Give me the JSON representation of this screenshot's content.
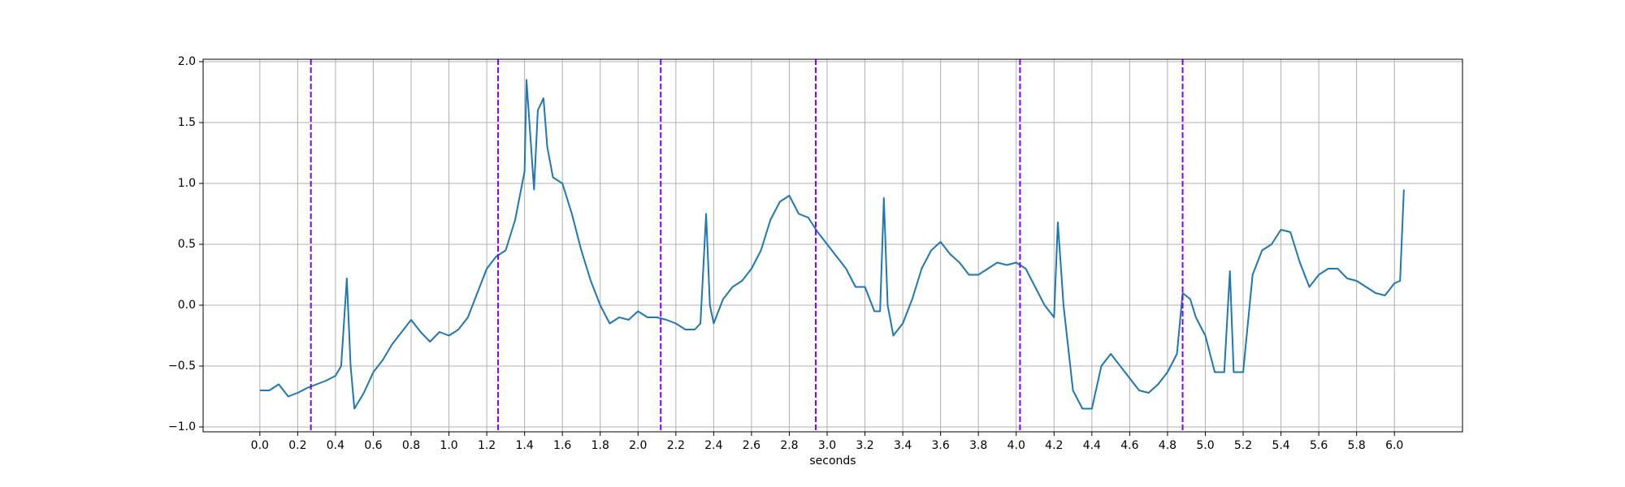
{
  "chart_data": {
    "type": "line",
    "xlabel": "seconds",
    "x": [
      0.0,
      0.05,
      0.1,
      0.15,
      0.2,
      0.25,
      0.3,
      0.35,
      0.4,
      0.43,
      0.46,
      0.48,
      0.5,
      0.55,
      0.6,
      0.65,
      0.7,
      0.75,
      0.8,
      0.85,
      0.9,
      0.95,
      1.0,
      1.05,
      1.1,
      1.15,
      1.2,
      1.25,
      1.3,
      1.35,
      1.4,
      1.41,
      1.43,
      1.45,
      1.47,
      1.5,
      1.52,
      1.55,
      1.6,
      1.65,
      1.7,
      1.75,
      1.8,
      1.85,
      1.9,
      1.95,
      2.0,
      2.05,
      2.1,
      2.15,
      2.2,
      2.25,
      2.3,
      2.33,
      2.36,
      2.38,
      2.4,
      2.45,
      2.5,
      2.55,
      2.6,
      2.65,
      2.7,
      2.75,
      2.8,
      2.85,
      2.9,
      2.95,
      3.0,
      3.05,
      3.1,
      3.15,
      3.2,
      3.25,
      3.28,
      3.3,
      3.32,
      3.35,
      3.4,
      3.45,
      3.5,
      3.55,
      3.6,
      3.65,
      3.7,
      3.75,
      3.8,
      3.85,
      3.9,
      3.95,
      4.0,
      4.05,
      4.1,
      4.15,
      4.2,
      4.22,
      4.25,
      4.3,
      4.35,
      4.4,
      4.45,
      4.5,
      4.55,
      4.6,
      4.65,
      4.7,
      4.75,
      4.8,
      4.85,
      4.88,
      4.92,
      4.95,
      5.0,
      5.05,
      5.1,
      5.13,
      5.15,
      5.2,
      5.25,
      5.3,
      5.35,
      5.4,
      5.45,
      5.5,
      5.55,
      5.6,
      5.65,
      5.7,
      5.75,
      5.8,
      5.85,
      5.9,
      5.95,
      6.0,
      6.03,
      6.05
    ],
    "series": [
      {
        "color": "#1f77b4",
        "values": [
          -0.7,
          -0.7,
          -0.65,
          -0.75,
          -0.72,
          -0.68,
          -0.65,
          -0.62,
          -0.58,
          -0.5,
          0.22,
          -0.5,
          -0.85,
          -0.72,
          -0.55,
          -0.45,
          -0.32,
          -0.22,
          -0.12,
          -0.22,
          -0.3,
          -0.22,
          -0.25,
          -0.2,
          -0.1,
          0.1,
          0.3,
          0.4,
          0.45,
          0.7,
          1.1,
          1.85,
          1.4,
          0.95,
          1.6,
          1.7,
          1.3,
          1.05,
          1.0,
          0.75,
          0.45,
          0.2,
          0.0,
          -0.15,
          -0.1,
          -0.12,
          -0.05,
          -0.1,
          -0.1,
          -0.12,
          -0.15,
          -0.2,
          -0.2,
          -0.15,
          0.75,
          0.0,
          -0.15,
          0.05,
          0.15,
          0.2,
          0.3,
          0.45,
          0.7,
          0.85,
          0.9,
          0.75,
          0.72,
          0.6,
          0.5,
          0.4,
          0.3,
          0.15,
          0.15,
          -0.05,
          -0.05,
          0.88,
          0.0,
          -0.25,
          -0.15,
          0.05,
          0.3,
          0.45,
          0.52,
          0.42,
          0.35,
          0.25,
          0.25,
          0.3,
          0.35,
          0.33,
          0.35,
          0.3,
          0.15,
          0.0,
          -0.1,
          0.68,
          0.0,
          -0.7,
          -0.85,
          -0.85,
          -0.5,
          -0.4,
          -0.5,
          -0.6,
          -0.7,
          -0.72,
          -0.65,
          -0.55,
          -0.4,
          0.1,
          0.05,
          -0.1,
          -0.25,
          -0.55,
          -0.55,
          0.28,
          -0.55,
          -0.55,
          0.25,
          0.45,
          0.5,
          0.62,
          0.6,
          0.35,
          0.15,
          0.25,
          0.3,
          0.3,
          0.22,
          0.2,
          0.15,
          0.1,
          0.08,
          0.18,
          0.2,
          0.95
        ]
      }
    ],
    "vlines": {
      "color": "#7f00ff",
      "x": [
        0.27,
        1.26,
        2.12,
        2.94,
        4.02,
        4.88
      ]
    },
    "xlim": [
      -0.3,
      6.36
    ],
    "ylim": [
      -1.04,
      2.02
    ],
    "xticks": [
      {
        "value": 0,
        "label": "0.0"
      },
      {
        "value": 0.2,
        "label": "0.2"
      },
      {
        "value": 0.4,
        "label": "0.4"
      },
      {
        "value": 0.6,
        "label": "0.6"
      },
      {
        "value": 0.8,
        "label": "0.8"
      },
      {
        "value": 1,
        "label": "1.0"
      },
      {
        "value": 1.2,
        "label": "1.2"
      },
      {
        "value": 1.4,
        "label": "1.4"
      },
      {
        "value": 1.6,
        "label": "1.6"
      },
      {
        "value": 1.8,
        "label": "1.8"
      },
      {
        "value": 2,
        "label": "2.0"
      },
      {
        "value": 2.2,
        "label": "2.2"
      },
      {
        "value": 2.4,
        "label": "2.4"
      },
      {
        "value": 2.6,
        "label": "2.6"
      },
      {
        "value": 2.8,
        "label": "2.8"
      },
      {
        "value": 3,
        "label": "3.0"
      },
      {
        "value": 3.2,
        "label": "3.2"
      },
      {
        "value": 3.4,
        "label": "3.4"
      },
      {
        "value": 3.6,
        "label": "3.6"
      },
      {
        "value": 3.8,
        "label": "3.8"
      },
      {
        "value": 4,
        "label": "4.0"
      },
      {
        "value": 4.2,
        "label": "4.2"
      },
      {
        "value": 4.4,
        "label": "4.4"
      },
      {
        "value": 4.6,
        "label": "4.6"
      },
      {
        "value": 4.8,
        "label": "4.8"
      },
      {
        "value": 5,
        "label": "5.0"
      },
      {
        "value": 5.2,
        "label": "5.2"
      },
      {
        "value": 5.4,
        "label": "5.4"
      },
      {
        "value": 5.6,
        "label": "5.6"
      },
      {
        "value": 5.8,
        "label": "5.8"
      },
      {
        "value": 6,
        "label": "6.0"
      }
    ],
    "yticks": [
      {
        "value": -1,
        "label": "−1.0"
      },
      {
        "value": -0.5,
        "label": "−0.5"
      },
      {
        "value": 0,
        "label": "0.0"
      },
      {
        "value": 0.5,
        "label": "0.5"
      },
      {
        "value": 1,
        "label": "1.0"
      },
      {
        "value": 1.5,
        "label": "1.5"
      },
      {
        "value": 2,
        "label": "2.0"
      }
    ],
    "grid": true
  }
}
